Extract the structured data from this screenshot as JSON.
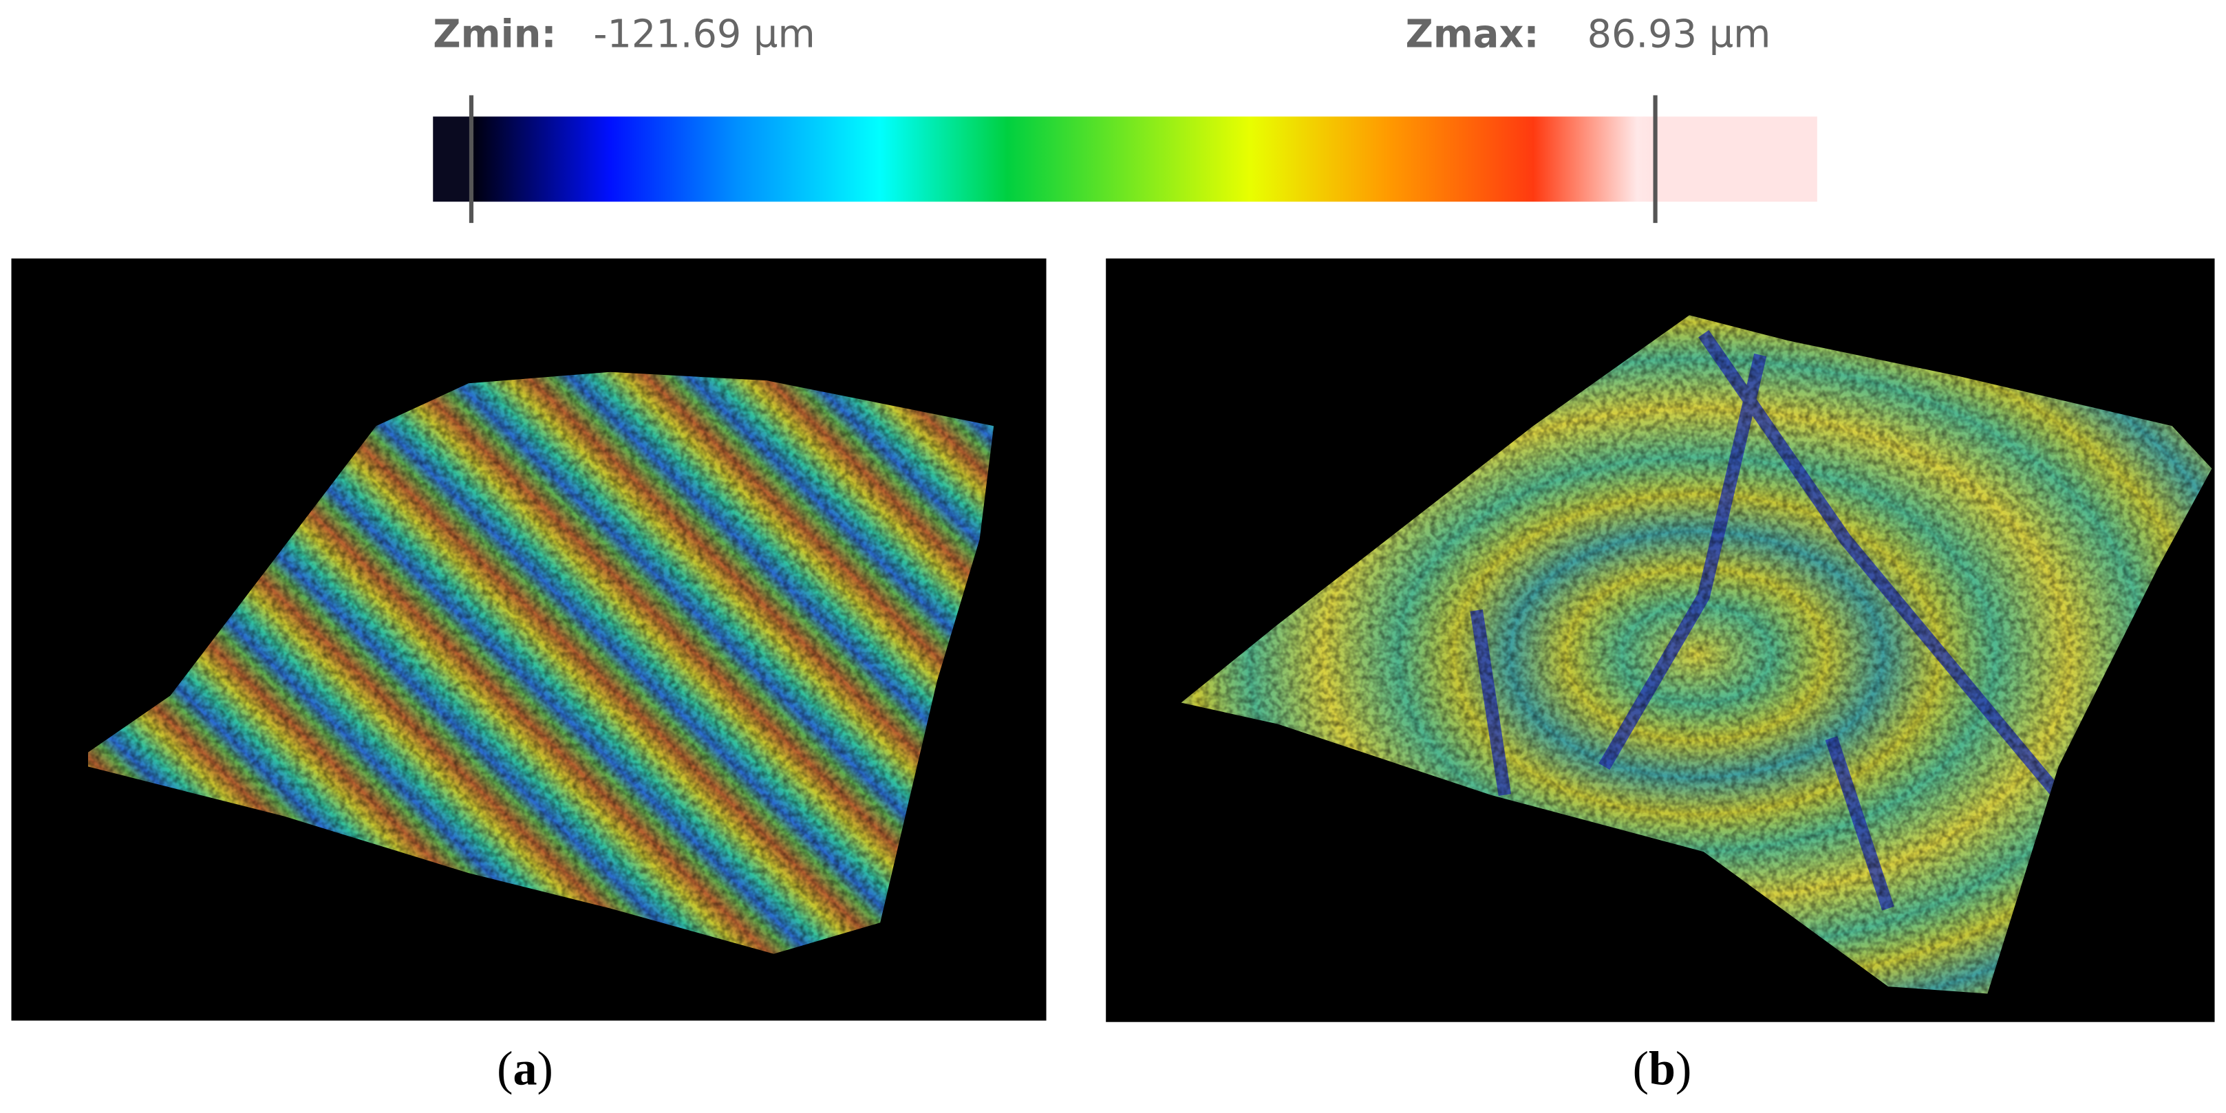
{
  "colorbar": {
    "zmin": {
      "label": "Zmin:",
      "value": "-121.69 µm"
    },
    "zmax": {
      "label": "Zmax:",
      "value": "86.93 µm"
    }
  },
  "panels": [
    {
      "label_open": "(",
      "label_letter": "a",
      "label_close": ")"
    },
    {
      "label_open": "(",
      "label_letter": "b",
      "label_close": ")"
    }
  ]
}
